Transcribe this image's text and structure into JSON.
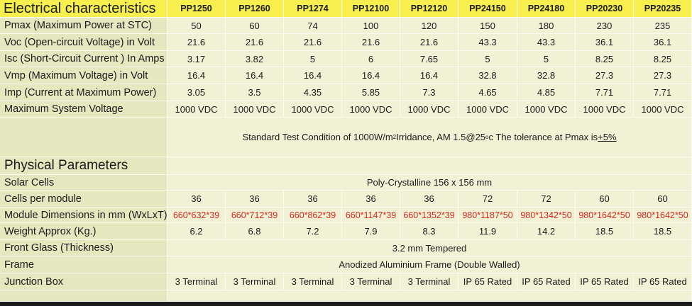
{
  "electrical": {
    "title": "Electrical characteristics",
    "models": [
      "PP1250",
      "PP1260",
      "PP1274",
      "PP12100",
      "PP12120",
      "PP24150",
      "PP24180",
      "PP20230",
      "PP20235"
    ],
    "rows": [
      {
        "label": "Pmax (Maximum Power at STC)",
        "values": [
          "50",
          "60",
          "74",
          "100",
          "120",
          "150",
          "180",
          "230",
          "235"
        ]
      },
      {
        "label": "Voc (Open-circuit Voltage) in Volt",
        "values": [
          "21.6",
          "21.6",
          "21.6",
          "21.6",
          "21.6",
          "43.3",
          "43.3",
          "36.1",
          "36.1"
        ]
      },
      {
        "label": "Isc (Short-Circuit Current ) In Amps",
        "values": [
          "3.17",
          "3.82",
          "5",
          "6",
          "7.65",
          "5",
          "5",
          "8.25",
          "8.25"
        ]
      },
      {
        "label": "Vmp (Maximum Voltage) in Volt",
        "values": [
          "16.4",
          "16.4",
          "16.4",
          "16.4",
          "16.4",
          "32.8",
          "32.8",
          "27.3",
          "27.3"
        ]
      },
      {
        "label": "Imp (Current at Maximum Power)",
        "values": [
          "3.05",
          "3.5",
          "4.35",
          "5.85",
          "7.3",
          "4.65",
          "4.85",
          "7.71",
          "7.71"
        ]
      },
      {
        "label": "Maximum System Voltage",
        "values": [
          "1000 VDC",
          "1000 VDC",
          "1000 VDC",
          "1000 VDC",
          "1000 VDC",
          "1000 VDC",
          "1000 VDC",
          "1000 VDC",
          "1000 VDC"
        ]
      }
    ],
    "note_before": "Standard Test Condition of 1000W/m",
    "note_sup1": "2",
    "note_mid": " Irridance, AM 1.5@25",
    "note_sup2": "o",
    "note_after": "c The tolerance at Pmax is ",
    "note_tol": "+5%"
  },
  "physical": {
    "title": "Physical Parameters",
    "solar_cells": {
      "label": "Solar Cells",
      "value": "Poly-Crystalline 156 x 156 mm"
    },
    "cells_per_module": {
      "label": "Cells per module",
      "values": [
        "36",
        "36",
        "36",
        "36",
        "36",
        "72",
        "72",
        "60",
        "60"
      ]
    },
    "dimensions": {
      "label": "Module Dimensions in mm (WxLxT)",
      "values": [
        "660*632*39",
        "660*712*39",
        "660*862*39",
        "660*1147*39",
        "660*1352*39",
        "980*1187*50",
        "980*1342*50",
        "980*1642*50",
        "980*1642*50"
      ]
    },
    "weight": {
      "label": "Weight Approx (Kg.)",
      "values": [
        "6.2",
        "6.8",
        "7.2",
        "7.9",
        "8.3",
        "11.9",
        "14.2",
        "18.5",
        "18.5"
      ]
    },
    "front_glass": {
      "label": "Front Glass (Thickness)",
      "value": "3.2  mm Tempered"
    },
    "frame": {
      "label": "Frame",
      "value": "Anodized Aluminium Frame (Double Walled)"
    },
    "junction_box": {
      "label": "Junction Box",
      "values": [
        "3 Terminal",
        "3 Terminal",
        "3 Terminal",
        "3 Terminal",
        "3 Terminal",
        "IP 65 Rated",
        "IP 65 Rated",
        "IP 65 Rated",
        "IP 65 Rated"
      ]
    }
  },
  "colors": {
    "header_yellow": "#f6ef4d",
    "cell_bg": "#f2f1d6",
    "label_bg": "#e6e6bf",
    "dimension_red": "#d42a1e"
  }
}
